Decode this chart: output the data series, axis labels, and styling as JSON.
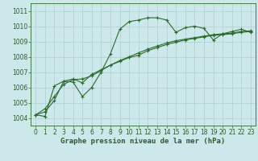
{
  "background_color": "#cce8ea",
  "grid_color": "#aacfd2",
  "line_color": "#2d6b2d",
  "text_color": "#2d5a2d",
  "xlabel": "Graphe pression niveau de la mer (hPa)",
  "ylim": [
    1003.5,
    1011.5
  ],
  "xlim": [
    -0.5,
    23.5
  ],
  "yticks": [
    1004,
    1005,
    1006,
    1007,
    1008,
    1009,
    1010,
    1011
  ],
  "xticks": [
    0,
    1,
    2,
    3,
    4,
    5,
    6,
    7,
    8,
    9,
    10,
    11,
    12,
    13,
    14,
    15,
    16,
    17,
    18,
    19,
    20,
    21,
    22,
    23
  ],
  "series1_x": [
    0,
    1,
    2,
    3,
    4,
    5,
    6,
    7,
    8,
    9,
    10,
    11,
    12,
    13,
    14,
    15,
    16,
    17,
    18,
    19,
    20,
    21,
    22,
    23
  ],
  "series1_y": [
    1004.2,
    1004.1,
    1006.1,
    1006.4,
    1006.35,
    1005.4,
    1006.0,
    1007.0,
    1008.2,
    1009.8,
    1010.3,
    1010.4,
    1010.55,
    1010.55,
    1010.4,
    1009.6,
    1009.9,
    1010.0,
    1009.85,
    1009.1,
    1009.5,
    1009.65,
    1009.8,
    1009.6
  ],
  "series2_x": [
    0,
    1,
    2,
    3,
    4,
    5,
    6,
    7,
    8,
    9,
    10,
    11,
    12,
    13,
    14,
    15,
    16,
    17,
    18,
    19,
    20,
    21,
    22,
    23
  ],
  "series2_y": [
    1004.2,
    1004.4,
    1005.15,
    1006.4,
    1006.55,
    1006.3,
    1006.85,
    1007.15,
    1007.45,
    1007.75,
    1008.0,
    1008.25,
    1008.5,
    1008.7,
    1008.9,
    1009.05,
    1009.15,
    1009.25,
    1009.35,
    1009.45,
    1009.5,
    1009.55,
    1009.65,
    1009.7
  ],
  "series3_x": [
    0,
    1,
    2,
    3,
    4,
    5,
    6,
    7,
    8,
    9,
    10,
    11,
    12,
    13,
    14,
    15,
    16,
    17,
    18,
    19,
    20,
    21,
    22,
    23
  ],
  "series3_y": [
    1004.2,
    1004.6,
    1005.4,
    1006.2,
    1006.5,
    1006.55,
    1006.75,
    1007.1,
    1007.45,
    1007.7,
    1007.95,
    1008.1,
    1008.4,
    1008.6,
    1008.8,
    1008.95,
    1009.1,
    1009.2,
    1009.3,
    1009.4,
    1009.45,
    1009.5,
    1009.6,
    1009.65
  ],
  "tick_fontsize": 5.5,
  "xlabel_fontsize": 6.5,
  "marker_size": 3.5
}
